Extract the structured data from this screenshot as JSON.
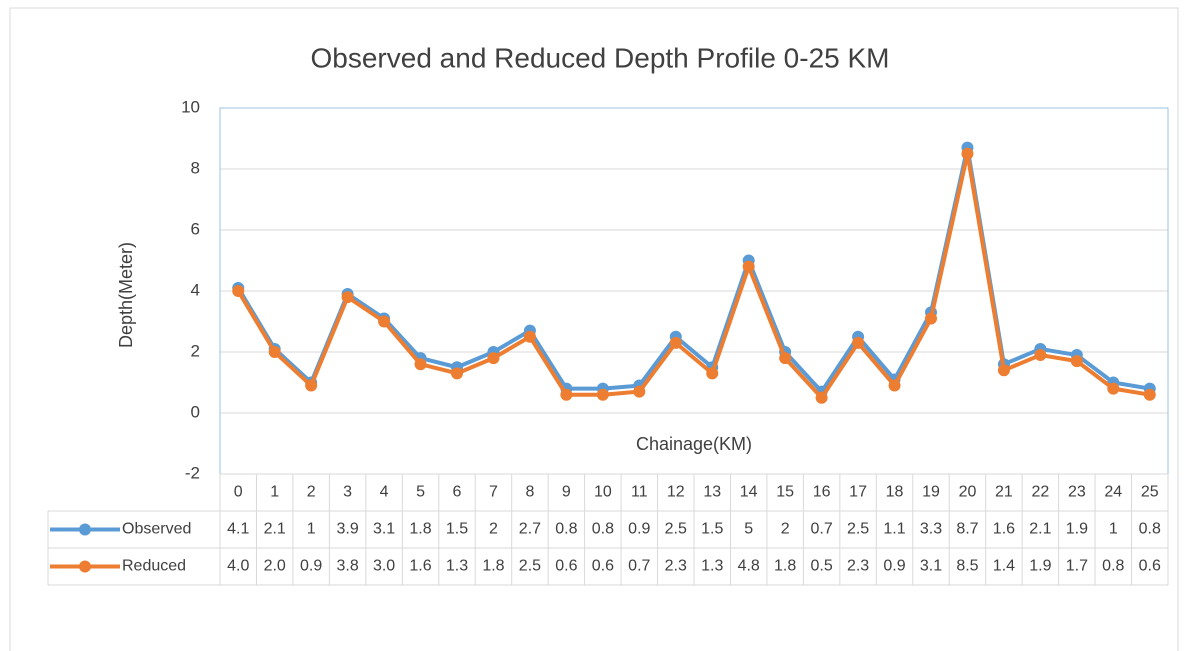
{
  "chart_data": {
    "type": "line",
    "title": "Observed and Reduced Depth Profile 0-25 KM",
    "y_label": "Depth(Meter)",
    "x_label": "Chainage(KM)",
    "categories": [
      "0",
      "1",
      "2",
      "3",
      "4",
      "5",
      "6",
      "7",
      "8",
      "9",
      "10",
      "11",
      "12",
      "13",
      "14",
      "15",
      "16",
      "17",
      "18",
      "19",
      "20",
      "21",
      "22",
      "23",
      "24",
      "25"
    ],
    "series": [
      {
        "name": "Observed",
        "color": "#5b9bd5",
        "values": [
          4.1,
          2.1,
          1,
          3.9,
          3.1,
          1.8,
          1.5,
          2,
          2.7,
          0.8,
          0.8,
          0.9,
          2.5,
          1.5,
          5,
          2,
          0.7,
          2.5,
          1.1,
          3.3,
          8.7,
          1.6,
          2.1,
          1.9,
          1,
          0.8
        ]
      },
      {
        "name": "Reduced",
        "color": "#ed7d31",
        "values": [
          4,
          2,
          0.9,
          3.8,
          3,
          1.6,
          1.3,
          1.8,
          2.5,
          0.6,
          0.6,
          0.7,
          2.3,
          1.3,
          4.8,
          1.8,
          0.5,
          2.3,
          0.9,
          3.1,
          8.5,
          1.4,
          1.9,
          1.7,
          0.8,
          0.6
        ],
        "value_labels": [
          "4.0",
          "2.0",
          "0.9",
          "3.8",
          "3.0",
          "1.6",
          "1.3",
          "1.8",
          "2.5",
          "0.6",
          "0.6",
          "0.7",
          "2.3",
          "1.3",
          "4.8",
          "1.8",
          "0.5",
          "2.3",
          "0.9",
          "3.1",
          "8.5",
          "1.4",
          "1.9",
          "1.7",
          "0.8",
          "0.6"
        ]
      }
    ],
    "ylim": [
      -2,
      10
    ],
    "yticks": [
      -2,
      0,
      2,
      4,
      6,
      8,
      10
    ],
    "grid": true,
    "data_table": true
  }
}
